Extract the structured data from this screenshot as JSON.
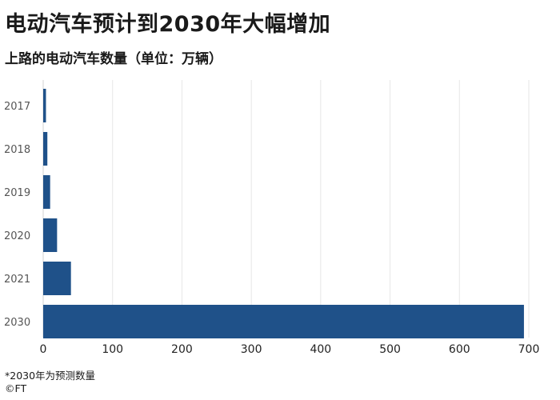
{
  "chart_data": {
    "type": "bar",
    "orientation": "horizontal",
    "title": "电动汽车预计到2030年大幅增加",
    "subtitle": "上路的电动汽车数量（单位：万辆）",
    "categories": [
      "2017",
      "2018",
      "2019",
      "2020",
      "2021",
      "2030"
    ],
    "values": [
      4,
      6,
      10,
      20,
      40,
      693
    ],
    "xlim": [
      0,
      700
    ],
    "xticks": [
      0,
      100,
      200,
      300,
      400,
      500,
      600,
      700
    ],
    "xlabel": "",
    "ylabel": "",
    "grid": "vertical",
    "bar_color": "#1f5189",
    "footnote": "*2030年为预测数量",
    "source": "©FT"
  }
}
